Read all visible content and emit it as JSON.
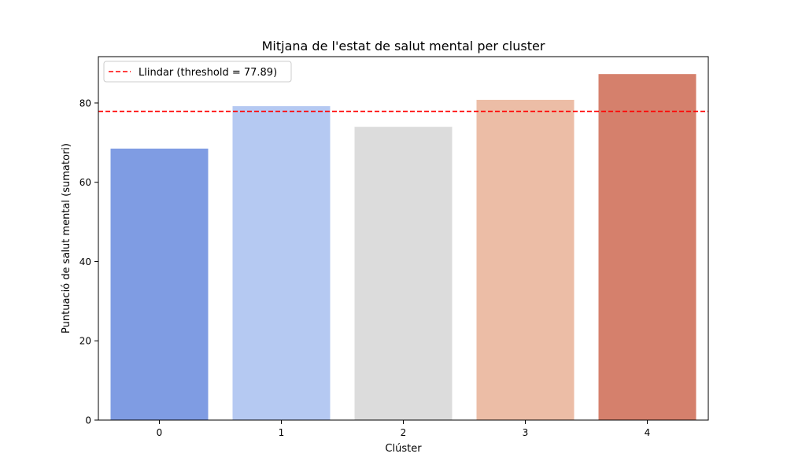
{
  "chart_data": {
    "type": "bar",
    "title": "Mitjana de l'estat de salut mental per cluster",
    "xlabel": "Clúster",
    "ylabel": "Puntuació de salut mental (sumatori)",
    "categories": [
      "0",
      "1",
      "2",
      "3",
      "4"
    ],
    "values": [
      68.5,
      79.2,
      74.0,
      80.8,
      87.3
    ],
    "colors": [
      "#7f9ce3",
      "#b5c9f2",
      "#dcdcdc",
      "#ecbda6",
      "#d5806c"
    ],
    "ylim": [
      0,
      91.7
    ],
    "yticks": [
      0,
      20,
      40,
      60,
      80
    ],
    "threshold": {
      "value": 77.89,
      "label": "Llindar (threshold = 77.89)",
      "color": "#ff0000",
      "style": "dashed"
    },
    "legend_position": "upper-left",
    "grid": false
  }
}
